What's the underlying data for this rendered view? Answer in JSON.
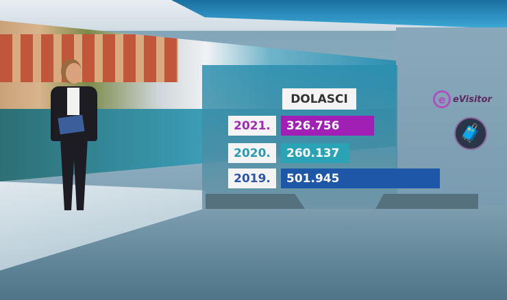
{
  "chart_data": {
    "type": "bar",
    "title": "DOLASCI",
    "categories": [
      "2021.",
      "2020.",
      "2019."
    ],
    "values": [
      326756,
      260137,
      501945
    ],
    "value_labels": [
      "326.756",
      "260.137",
      "501.945"
    ],
    "colors": [
      "#a01fb5",
      "#2aa3b5",
      "#1e56a8"
    ],
    "year_label_colors": [
      "#a02ab5",
      "#2a9cb0",
      "#2c55a8"
    ],
    "orientation": "horizontal"
  },
  "branding": {
    "logo_text": "eVisitor",
    "logo_letter": "e",
    "traveler_icon": "traveler-with-luggage-icon"
  }
}
